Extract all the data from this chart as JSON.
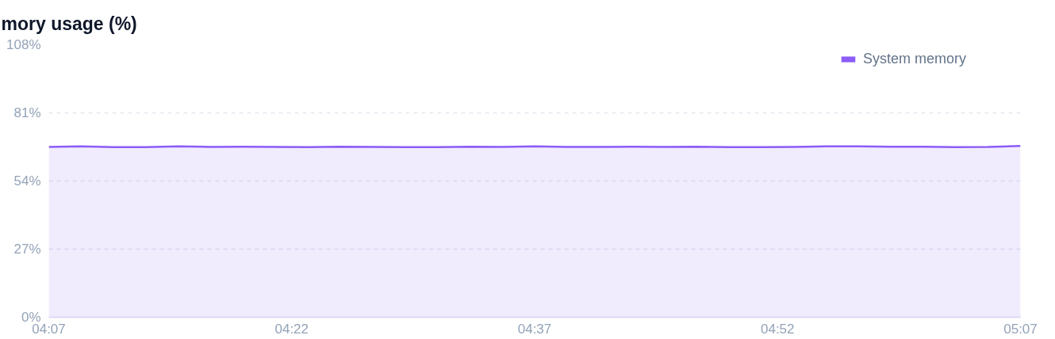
{
  "chart_data": {
    "type": "area",
    "title": "mory usage (%)",
    "x": [
      4.1167,
      4.15,
      4.1833,
      4.2167,
      4.25,
      4.2833,
      4.3167,
      4.35,
      4.3833,
      4.4167,
      4.45,
      4.4833,
      4.5167,
      4.55,
      4.5833,
      4.6167,
      4.65,
      4.6833,
      4.7167,
      4.75,
      4.7833,
      4.8167,
      4.85,
      4.8833,
      4.9167,
      4.95,
      4.9833,
      5.0167,
      5.05,
      5.0833,
      5.1167
    ],
    "series": [
      {
        "name": "System memory",
        "color": "#8b5cf6",
        "values": [
          67.5,
          67.7,
          67.4,
          67.4,
          67.7,
          67.5,
          67.6,
          67.5,
          67.4,
          67.6,
          67.5,
          67.4,
          67.4,
          67.6,
          67.5,
          67.7,
          67.5,
          67.5,
          67.6,
          67.5,
          67.6,
          67.4,
          67.4,
          67.5,
          67.7,
          67.7,
          67.6,
          67.6,
          67.4,
          67.5,
          67.9
        ]
      }
    ],
    "xlim": [
      4.1167,
      5.1167
    ],
    "xticks": [
      {
        "value": 4.1167,
        "label": "04:07"
      },
      {
        "value": 4.3667,
        "label": "04:22"
      },
      {
        "value": 4.6167,
        "label": "04:37"
      },
      {
        "value": 4.8667,
        "label": "04:52"
      },
      {
        "value": 5.1167,
        "label": "05:07"
      }
    ],
    "ylim": [
      0,
      108
    ],
    "yticks": [
      {
        "value": 0,
        "label": "0%"
      },
      {
        "value": 27,
        "label": "27%"
      },
      {
        "value": 54,
        "label": "54%"
      },
      {
        "value": 81,
        "label": "81%"
      },
      {
        "value": 108,
        "label": "108%"
      }
    ],
    "grid": "y",
    "legend": "top right"
  }
}
